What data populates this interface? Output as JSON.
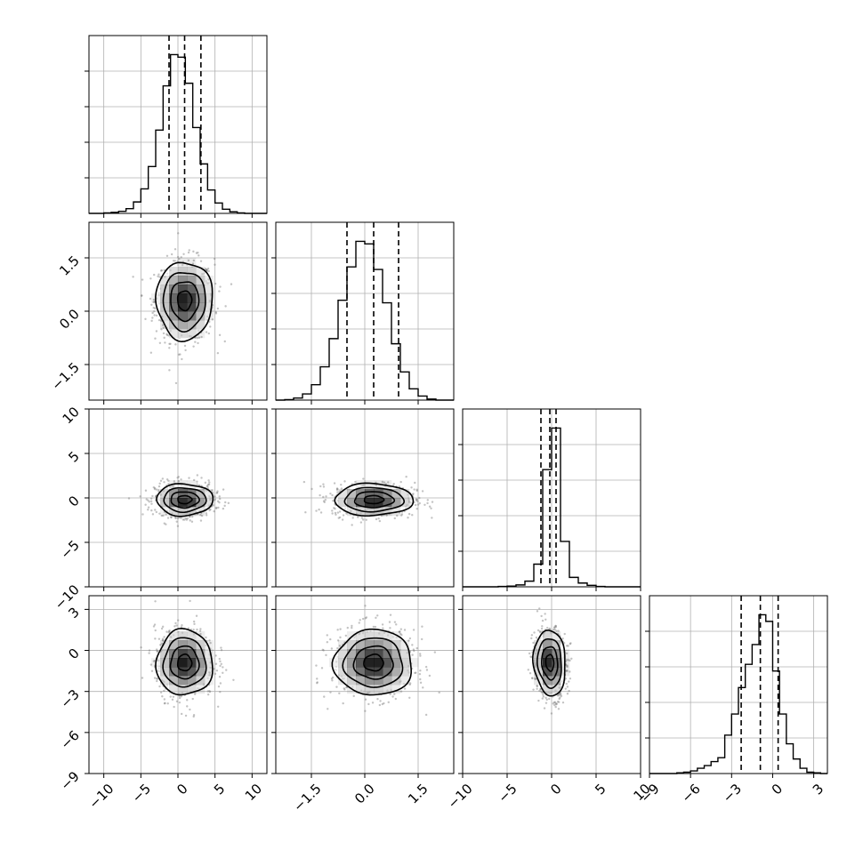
{
  "chart_data": {
    "type": "corner",
    "variables": [
      {
        "range": [
          -12,
          12
        ],
        "ticks": [
          -10,
          -5,
          0,
          5,
          10
        ],
        "tick_labels": [
          "−10",
          "−5",
          "0",
          "5",
          "10"
        ],
        "histogram": {
          "edges": [
            -12,
            -11,
            -10,
            -9,
            -8,
            -7,
            -6,
            -5,
            -4,
            -3,
            -2,
            -1,
            0,
            1,
            2,
            3,
            4,
            5,
            6,
            7,
            8,
            9,
            10,
            11,
            12
          ],
          "counts": [
            0,
            0,
            1,
            2,
            4,
            9,
            22,
            47,
            90,
            160,
            245,
            305,
            300,
            250,
            165,
            95,
            45,
            20,
            8,
            3,
            1,
            0,
            0,
            0
          ]
        },
        "quantiles": [
          -1.2,
          0.9,
          3.1
        ]
      },
      {
        "range": [
          -2.5,
          2.5
        ],
        "ticks": [
          -1.5,
          0.0,
          1.5
        ],
        "tick_labels": [
          "−1.5",
          "0.0",
          "1.5"
        ],
        "histogram": {
          "edges": [
            -2.5,
            -2.25,
            -2.0,
            -1.75,
            -1.5,
            -1.25,
            -1.0,
            -0.75,
            -0.5,
            -0.25,
            0.0,
            0.25,
            0.5,
            0.75,
            1.0,
            1.25,
            1.5,
            1.75,
            2.0,
            2.25,
            2.5
          ],
          "counts": [
            0,
            1,
            4,
            12,
            30,
            65,
            120,
            195,
            260,
            310,
            305,
            255,
            190,
            110,
            55,
            22,
            8,
            2,
            0,
            0
          ]
        },
        "quantiles": [
          -0.5,
          0.25,
          0.95
        ]
      },
      {
        "range": [
          -10,
          10
        ],
        "ticks": [
          -10,
          -5,
          0,
          5,
          10
        ],
        "tick_labels": [
          "−10",
          "−5",
          "0",
          "5",
          "10"
        ],
        "histogram": {
          "edges": [
            -10,
            -9,
            -8,
            -7,
            -6,
            -5,
            -4,
            -3,
            -2,
            -1,
            0,
            1,
            2,
            3,
            4,
            5,
            6,
            7,
            8,
            9,
            10
          ],
          "counts": [
            0,
            0,
            0,
            0,
            1,
            2,
            5,
            15,
            60,
            310,
            420,
            120,
            25,
            10,
            4,
            1,
            0,
            0,
            0,
            0
          ]
        },
        "quantiles": [
          -1.2,
          -0.2,
          0.5
        ]
      },
      {
        "range": [
          -9,
          4
        ],
        "ticks": [
          -9,
          -6,
          -3,
          0,
          3
        ],
        "tick_labels": [
          "−9",
          "−6",
          "−3",
          "0",
          "3"
        ],
        "histogram": {
          "edges": [
            -9,
            -8.5,
            -8,
            -7.5,
            -7,
            -6.5,
            -6,
            -5.5,
            -5,
            -4.5,
            -4,
            -3.5,
            -3,
            -2.5,
            -2,
            -1.5,
            -1,
            -0.5,
            0,
            0.5,
            1,
            1.5,
            2,
            2.5,
            3,
            3.5,
            4
          ],
          "counts": [
            0,
            0,
            0,
            0,
            1,
            2,
            4,
            8,
            12,
            18,
            24,
            58,
            90,
            130,
            165,
            195,
            240,
            230,
            155,
            90,
            45,
            22,
            8,
            2,
            1,
            0
          ]
        },
        "quantiles": [
          -2.3,
          -0.9,
          0.4
        ]
      }
    ],
    "pairs": [
      {
        "row": 1,
        "col": 0,
        "mean": [
          0.9,
          0.3
        ],
        "sd": [
          1.9,
          0.55
        ],
        "rho": 0.0
      },
      {
        "row": 2,
        "col": 0,
        "mean": [
          0.9,
          -0.2
        ],
        "sd": [
          1.9,
          0.9
        ],
        "rho": 0.0
      },
      {
        "row": 2,
        "col": 1,
        "mean": [
          0.25,
          -0.2
        ],
        "sd": [
          0.55,
          0.9
        ],
        "rho": 0.0
      },
      {
        "row": 3,
        "col": 0,
        "mean": [
          0.9,
          -0.9
        ],
        "sd": [
          1.9,
          1.2
        ],
        "rho": 0.0
      },
      {
        "row": 3,
        "col": 1,
        "mean": [
          0.25,
          -0.9
        ],
        "sd": [
          0.55,
          1.2
        ],
        "rho": 0.0
      },
      {
        "row": 3,
        "col": 2,
        "mean": [
          -0.2,
          -0.9
        ],
        "sd": [
          0.9,
          1.2
        ],
        "rho": -0.1
      }
    ],
    "contour_levels_sigma": [
      0.5,
      1.0,
      1.5,
      2.0
    ],
    "grid": true,
    "colors": {
      "line": "#000000",
      "grid": "#b0b0b0",
      "density": "#000000",
      "points": "#7a7a7a"
    }
  }
}
